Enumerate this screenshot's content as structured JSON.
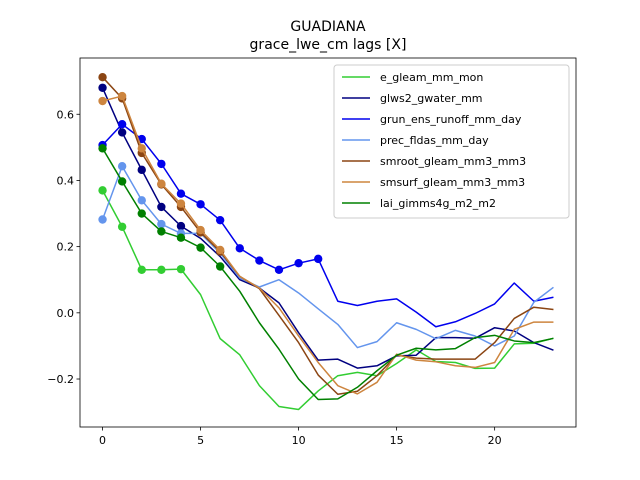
{
  "chart_data": {
    "type": "line",
    "title": "GUADIANA",
    "subtitle": "grace_lwe_cm lags [X]",
    "xlabel": "",
    "ylabel": "",
    "xlim": [
      -1.15,
      24.15
    ],
    "ylim": [
      -0.345,
      0.77
    ],
    "xticks": [
      0,
      5,
      10,
      15,
      20
    ],
    "yticks": [
      -0.2,
      0.0,
      0.2,
      0.4,
      0.6
    ],
    "ytick_labels": [
      "−0.2",
      "0.0",
      "0.2",
      "0.4",
      "0.6"
    ],
    "legend_position": "top-right",
    "x": [
      0,
      1,
      2,
      3,
      4,
      5,
      6,
      7,
      8,
      9,
      10,
      11,
      12,
      13,
      14,
      15,
      16,
      17,
      18,
      19,
      20,
      21,
      22,
      23
    ],
    "series": [
      {
        "name": "e_gleam_mm_mon",
        "color": "#32cd32",
        "marker_count": 5,
        "values": [
          0.37,
          0.26,
          0.13,
          0.13,
          0.132,
          0.055,
          -0.078,
          -0.127,
          -0.22,
          -0.283,
          -0.292,
          -0.236,
          -0.19,
          -0.18,
          -0.19,
          -0.153,
          -0.112,
          -0.147,
          -0.15,
          -0.168,
          -0.167,
          -0.094,
          -0.092,
          -0.077
        ]
      },
      {
        "name": "glws2_gwater_mm",
        "color": "#000080",
        "marker_count": 5,
        "values": [
          0.68,
          0.545,
          0.432,
          0.32,
          0.262,
          0.225,
          0.17,
          0.1,
          0.075,
          0.03,
          -0.06,
          -0.143,
          -0.14,
          -0.167,
          -0.16,
          -0.13,
          -0.128,
          -0.075,
          -0.075,
          -0.077,
          -0.045,
          -0.055,
          -0.09,
          -0.113
        ]
      },
      {
        "name": "grun_ens_runoff_mm_day",
        "color": "#0000ee",
        "marker_count": 12,
        "values": [
          0.507,
          0.57,
          0.525,
          0.45,
          0.36,
          0.328,
          0.28,
          0.195,
          0.158,
          0.13,
          0.15,
          0.163,
          0.035,
          0.022,
          0.035,
          0.042,
          0.002,
          -0.042,
          -0.027,
          -0.002,
          0.027,
          0.09,
          0.035,
          0.047
        ]
      },
      {
        "name": "prec_fldas_mm_day",
        "color": "#6495ed",
        "marker_count": 5,
        "values": [
          0.282,
          0.443,
          0.34,
          0.268,
          0.24,
          0.24,
          0.18,
          0.105,
          0.078,
          0.1,
          0.06,
          0.012,
          -0.035,
          -0.105,
          -0.087,
          -0.03,
          -0.05,
          -0.078,
          -0.053,
          -0.07,
          -0.1,
          -0.07,
          0.032,
          0.077
        ]
      },
      {
        "name": "smroot_gleam_mm3_mm3",
        "color": "#8b4513",
        "marker_count": 7,
        "values": [
          0.712,
          0.648,
          0.483,
          0.388,
          0.32,
          0.243,
          0.185,
          0.11,
          0.073,
          -0.008,
          -0.09,
          -0.188,
          -0.246,
          -0.237,
          -0.19,
          -0.128,
          -0.137,
          -0.14,
          -0.14,
          -0.14,
          -0.09,
          -0.017,
          0.017,
          0.01
        ]
      },
      {
        "name": "smsurf_gleam_mm3_mm3",
        "color": "#cd853f",
        "marker_count": 7,
        "values": [
          0.64,
          0.655,
          0.497,
          0.39,
          0.33,
          0.25,
          0.19,
          0.11,
          0.075,
          0.015,
          -0.07,
          -0.15,
          -0.22,
          -0.245,
          -0.21,
          -0.125,
          -0.143,
          -0.148,
          -0.16,
          -0.165,
          -0.15,
          -0.05,
          -0.028,
          -0.028
        ]
      },
      {
        "name": "lai_gimms4g_m2_m2",
        "color": "#008000",
        "marker_count": 7,
        "values": [
          0.497,
          0.397,
          0.3,
          0.246,
          0.227,
          0.197,
          0.14,
          0.065,
          -0.03,
          -0.11,
          -0.2,
          -0.262,
          -0.26,
          -0.225,
          -0.175,
          -0.128,
          -0.107,
          -0.112,
          -0.108,
          -0.075,
          -0.068,
          -0.085,
          -0.09,
          -0.077
        ]
      }
    ]
  }
}
